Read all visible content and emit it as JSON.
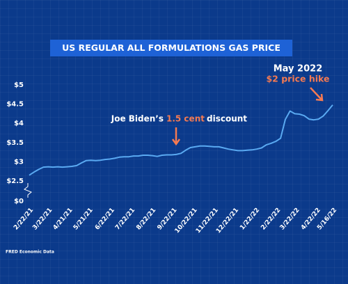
{
  "chart_data": {
    "type": "line",
    "title": "US REGULAR ALL FORMULATIONS GAS PRICE",
    "source": "FRED Economic Data",
    "annotations": [
      {
        "before": "Joe Biden’s",
        "highlight": "1.5 cent",
        "after": "discount"
      },
      {
        "line1": "May 2022",
        "line2": "$2 price hike"
      }
    ],
    "x": [
      "2/22/21",
      "3/1/21",
      "3/8/21",
      "3/15/21",
      "3/22/21",
      "3/29/21",
      "4/5/21",
      "4/12/21",
      "4/19/21",
      "4/26/21",
      "5/3/21",
      "5/10/21",
      "5/17/21",
      "5/24/21",
      "5/31/21",
      "6/7/21",
      "6/14/21",
      "6/21/21",
      "6/28/21",
      "7/5/21",
      "7/12/21",
      "7/19/21",
      "7/26/21",
      "8/2/21",
      "8/9/21",
      "8/16/21",
      "8/23/21",
      "8/30/21",
      "9/6/21",
      "9/13/21",
      "9/20/21",
      "9/27/21",
      "10/4/21",
      "10/11/21",
      "10/18/21",
      "10/25/21",
      "11/1/21",
      "11/8/21",
      "11/15/21",
      "11/22/21",
      "11/29/21",
      "12/6/21",
      "12/13/21",
      "12/20/21",
      "12/27/21",
      "1/3/22",
      "1/10/22",
      "1/17/22",
      "1/24/22",
      "1/31/22",
      "2/7/22",
      "2/14/22",
      "2/21/22",
      "2/28/22",
      "3/7/22",
      "3/14/22",
      "3/21/22",
      "3/28/22",
      "4/4/22",
      "4/11/22",
      "4/18/22",
      "4/25/22",
      "5/2/22",
      "5/9/22",
      "5/16/22"
    ],
    "series": [
      {
        "name": "Gas price",
        "color": "#5aaaf2",
        "values": [
          2.65,
          2.73,
          2.8,
          2.86,
          2.87,
          2.86,
          2.87,
          2.86,
          2.87,
          2.88,
          2.9,
          2.97,
          3.03,
          3.04,
          3.03,
          3.04,
          3.06,
          3.07,
          3.09,
          3.12,
          3.13,
          3.13,
          3.15,
          3.15,
          3.17,
          3.17,
          3.16,
          3.14,
          3.17,
          3.18,
          3.18,
          3.19,
          3.22,
          3.3,
          3.37,
          3.39,
          3.41,
          3.41,
          3.4,
          3.39,
          3.39,
          3.36,
          3.33,
          3.31,
          3.29,
          3.29,
          3.3,
          3.31,
          3.33,
          3.36,
          3.44,
          3.48,
          3.53,
          3.61,
          4.1,
          4.32,
          4.25,
          4.24,
          4.2,
          4.11,
          4.09,
          4.11,
          4.19,
          4.33,
          4.48
        ]
      }
    ],
    "xlim": [
      "2/22/21",
      "5/16/22"
    ],
    "xticks": [
      "2/22/21",
      "3/22/21",
      "4/21/21",
      "5/21/21",
      "6/22/21",
      "7/22/21",
      "8/22/21",
      "9/22/21",
      "10/22/21",
      "11/22/21",
      "12/22/21",
      "1/22/22",
      "2/22/22",
      "3/22/22",
      "4/22/22",
      "5/16/22"
    ],
    "ylim": [
      0,
      5
    ],
    "ybreak": [
      0,
      2.5
    ],
    "yticks": [
      {
        "value": 0,
        "label": "$0"
      },
      {
        "value": 2.5,
        "label": "$2.5"
      },
      {
        "value": 3,
        "label": "$3"
      },
      {
        "value": 3.5,
        "label": "$3.5"
      },
      {
        "value": 4,
        "label": "$4"
      },
      {
        "value": 4.5,
        "label": "$4.5"
      },
      {
        "value": 5,
        "label": "$5"
      }
    ]
  }
}
